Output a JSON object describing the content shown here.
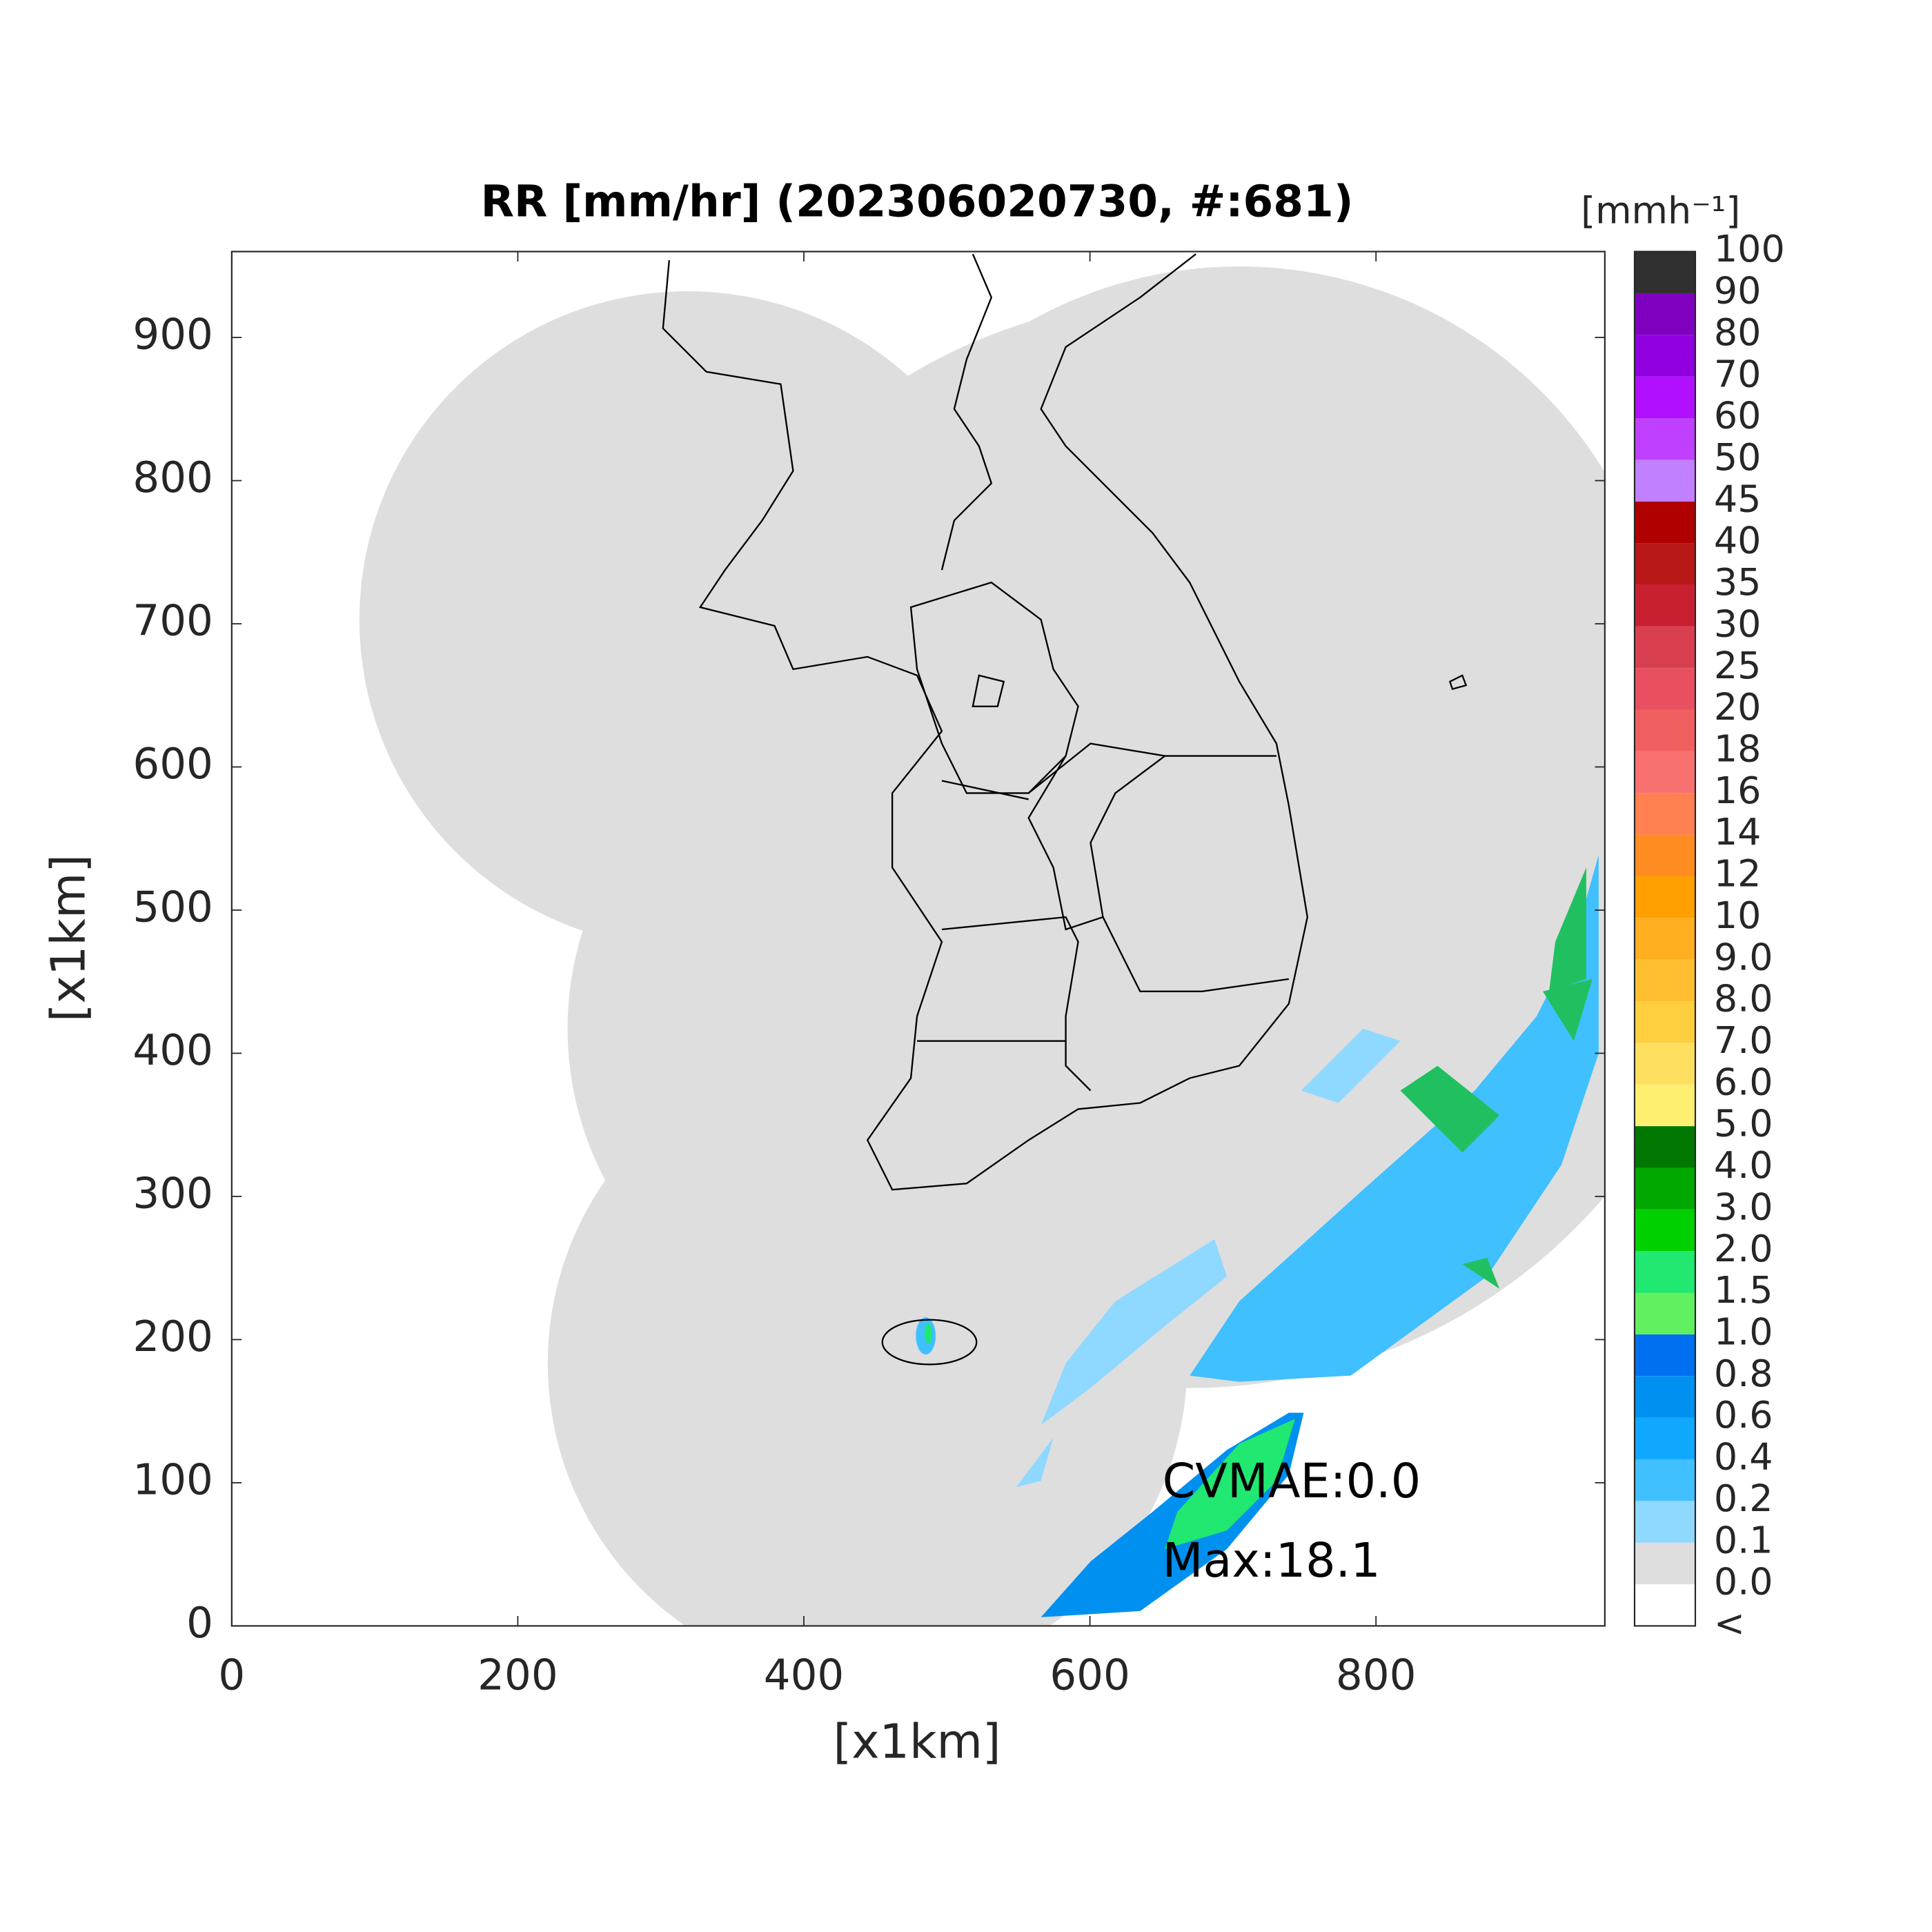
{
  "chart_data": {
    "type": "map",
    "title": "RR [mm/hr] (202306020730, #:681)",
    "x_label": "[x1km]",
    "y_label": "[x1km]",
    "xlim": [
      0,
      960
    ],
    "ylim": [
      0,
      960
    ],
    "xticks": [
      0,
      200,
      400,
      600,
      800
    ],
    "yticks": [
      0,
      100,
      200,
      300,
      400,
      500,
      600,
      700,
      800,
      900
    ],
    "annotations": [
      "CVMAE:0.0",
      "Max:18.1"
    ],
    "colorbar": {
      "title": "[mmh⁻¹]",
      "labels": [
        "<",
        "0.0",
        "0.1",
        "0.2",
        "0.4",
        "0.6",
        "0.8",
        "1.0",
        "1.5",
        "2.0",
        "3.0",
        "4.0",
        "5.0",
        "6.0",
        "7.0",
        "8.0",
        "9.0",
        "10",
        "12",
        "14",
        "16",
        "18",
        "20",
        "25",
        "30",
        "35",
        "40",
        "45",
        "50",
        "60",
        "70",
        "80",
        "90",
        "100"
      ],
      "colors": [
        "#ffffff",
        "#dedede",
        "#8fd8ff",
        "#40c0ff",
        "#10a8ff",
        "#0090f0",
        "#0070f0",
        "#60f060",
        "#20e870",
        "#00d000",
        "#00a800",
        "#007800",
        "#ffef70",
        "#ffdf60",
        "#ffcf40",
        "#ffbf30",
        "#ffaf20",
        "#ff9f00",
        "#ff8c20",
        "#ff8050",
        "#f87070",
        "#f06060",
        "#e85060",
        "#d84050",
        "#c82030",
        "#b81818",
        "#b00000",
        "#c080ff",
        "#c040ff",
        "#b010ff",
        "#9000e0",
        "#8000c0",
        "#303030"
      ]
    }
  }
}
